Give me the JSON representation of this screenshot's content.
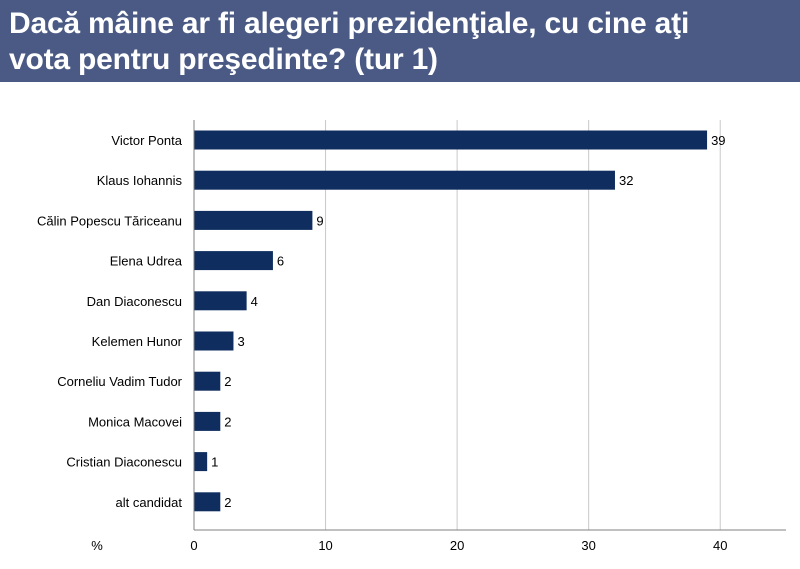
{
  "title": {
    "line1": "Dacă mâine ar fi alegeri prezidenţiale, cu cine aţi",
    "line2": "vota pentru preşedinte? (tur 1)"
  },
  "colors": {
    "header_bg": "#4a5a85",
    "bar": "#0f2d5e",
    "grid": "#c8c8c8"
  },
  "chart_data": {
    "type": "bar",
    "orientation": "horizontal",
    "title": "Dacă mâine ar fi alegeri prezidenţiale, cu cine aţi vota pentru preşedinte? (tur 1)",
    "xlabel": "%",
    "ylabel": "",
    "xlim": [
      0,
      45
    ],
    "xticks": [
      0,
      10,
      20,
      30,
      40
    ],
    "grid": true,
    "categories": [
      "Victor Ponta",
      "Klaus Iohannis",
      "Călin Popescu Tăriceanu",
      "Elena Udrea",
      "Dan Diaconescu",
      "Kelemen Hunor",
      "Corneliu Vadim Tudor",
      "Monica Macovei",
      "Cristian Diaconescu",
      "alt candidat"
    ],
    "values": [
      39,
      32,
      9,
      6,
      4,
      3,
      2,
      2,
      1,
      2
    ]
  }
}
